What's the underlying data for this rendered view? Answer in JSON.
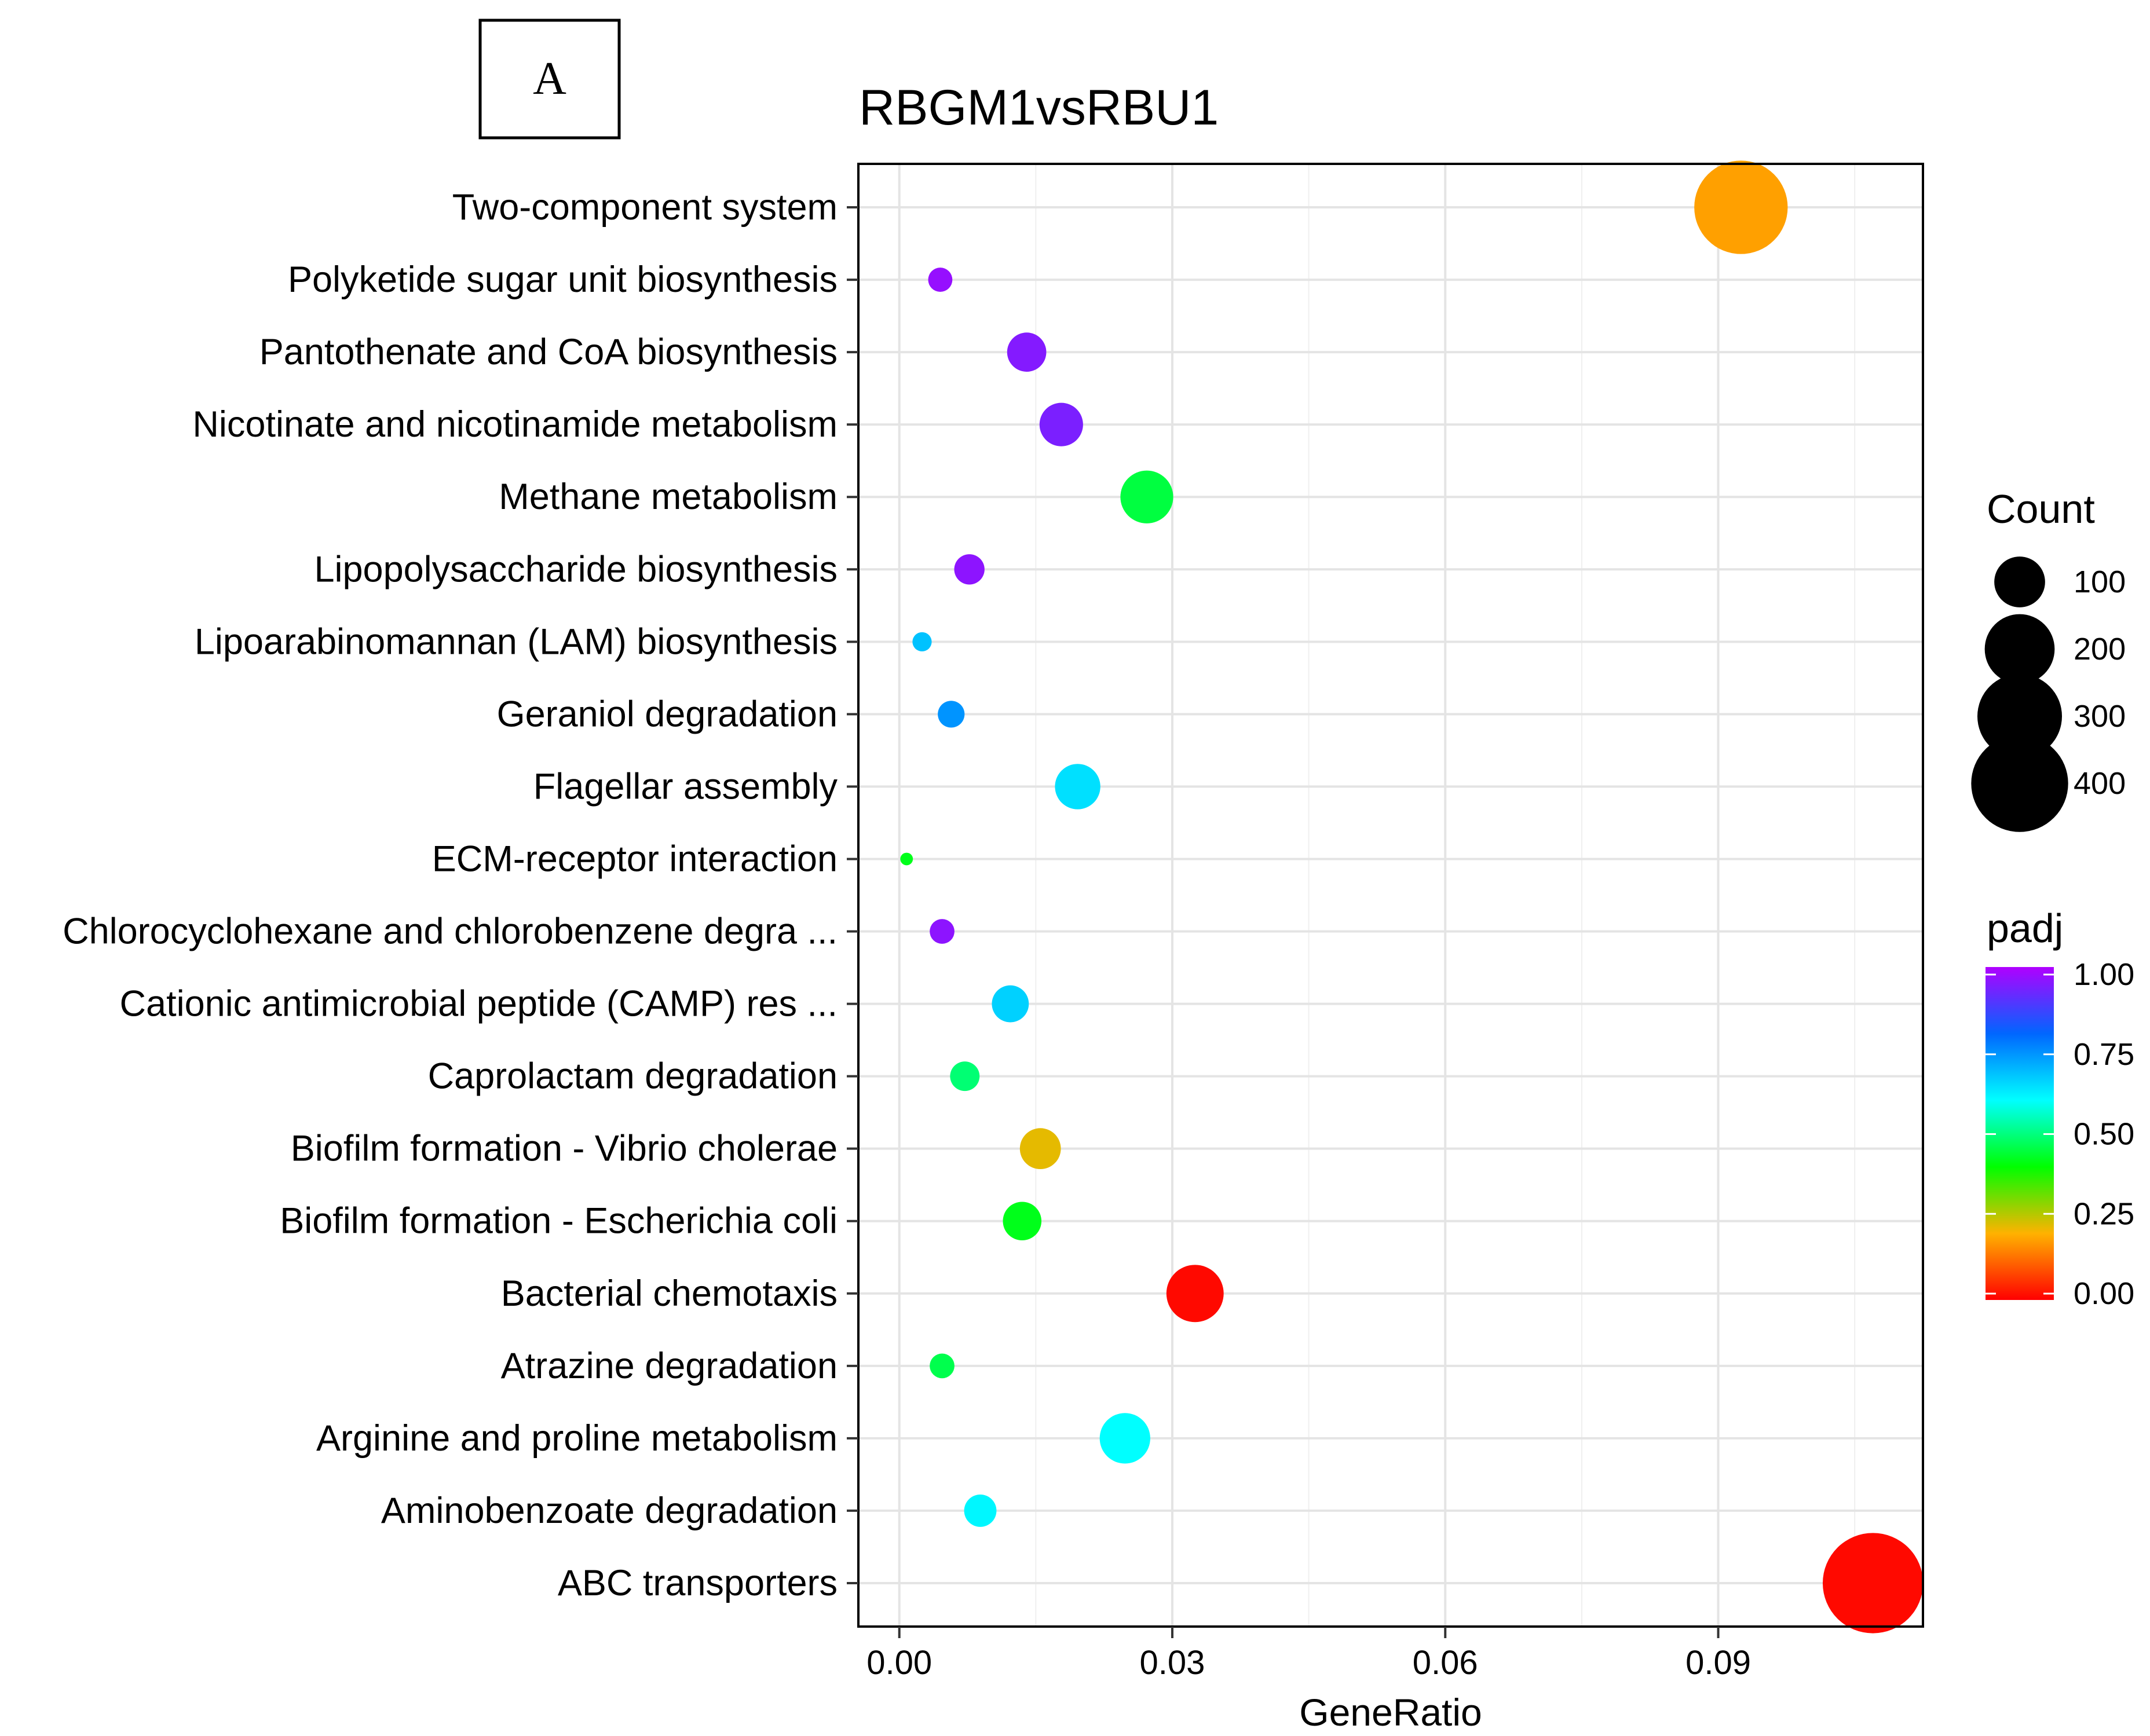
{
  "panel_label": "A",
  "chart_data": {
    "type": "scatter",
    "title": "RBGM1vsRBU1",
    "xlabel": "GeneRatio",
    "ylabel": "",
    "xlim": [
      -0.0045,
      0.1125
    ],
    "xticks": [
      0.0,
      0.03,
      0.06,
      0.09
    ],
    "xtick_labels": [
      "0.00",
      "0.03",
      "0.06",
      "0.09"
    ],
    "grid": true,
    "categories": [
      "Two-component system",
      "Polyketide sugar unit biosynthesis",
      "Pantothenate and CoA biosynthesis",
      "Nicotinate and nicotinamide metabolism",
      "Methane metabolism",
      "Lipopolysaccharide biosynthesis",
      "Lipoarabinomannan (LAM) biosynthesis",
      "Geraniol degradation",
      "Flagellar assembly",
      "ECM-receptor interaction",
      "Chlorocyclohexane and chlorobenzene degra ...",
      "Cationic antimicrobial peptide (CAMP) res ...",
      "Caprolactam degradation",
      "Biofilm formation - Vibrio cholerae",
      "Biofilm formation - Escherichia coli",
      "Bacterial chemotaxis",
      "Atrazine degradation",
      "Arginine and proline metabolism",
      "Aminobenzoate degradation",
      "ABC transporters"
    ],
    "points": [
      {
        "term": "Two-component system",
        "gene_ratio": 0.0925,
        "count": 370,
        "padj": 0.18
      },
      {
        "term": "Polyketide sugar unit biosynthesis",
        "gene_ratio": 0.0045,
        "count": 18,
        "padj": 0.97
      },
      {
        "term": "Pantothenate and CoA biosynthesis",
        "gene_ratio": 0.014,
        "count": 56,
        "padj": 0.95
      },
      {
        "term": "Nicotinate and nicotinamide metabolism",
        "gene_ratio": 0.0178,
        "count": 71,
        "padj": 0.94
      },
      {
        "term": "Methane metabolism",
        "gene_ratio": 0.0272,
        "count": 109,
        "padj": 0.45
      },
      {
        "term": "Lipopolysaccharide biosynthesis",
        "gene_ratio": 0.0077,
        "count": 31,
        "padj": 0.96
      },
      {
        "term": "Lipoarabinomannan (LAM) biosynthesis",
        "gene_ratio": 0.0025,
        "count": 10,
        "padj": 0.68
      },
      {
        "term": "Geraniol degradation",
        "gene_ratio": 0.0057,
        "count": 23,
        "padj": 0.74
      },
      {
        "term": "Flagellar assembly",
        "gene_ratio": 0.0196,
        "count": 78,
        "padj": 0.64
      },
      {
        "term": "ECM-receptor interaction",
        "gene_ratio": 0.0008,
        "count": 3,
        "padj": 0.42
      },
      {
        "term": "Chlorocyclohexane and chlorobenzene degra ...",
        "gene_ratio": 0.0047,
        "count": 19,
        "padj": 0.96
      },
      {
        "term": "Cationic antimicrobial peptide (CAMP) res ...",
        "gene_ratio": 0.0122,
        "count": 49,
        "padj": 0.66
      },
      {
        "term": "Caprolactam degradation",
        "gene_ratio": 0.0072,
        "count": 29,
        "padj": 0.49
      },
      {
        "term": "Biofilm formation - Vibrio cholerae",
        "gene_ratio": 0.0155,
        "count": 62,
        "padj": 0.22
      },
      {
        "term": "Biofilm formation - Escherichia coli",
        "gene_ratio": 0.0135,
        "count": 54,
        "padj": 0.42
      },
      {
        "term": "Bacterial chemotaxis",
        "gene_ratio": 0.0325,
        "count": 130,
        "padj": 0.01
      },
      {
        "term": "Atrazine degradation",
        "gene_ratio": 0.0047,
        "count": 19,
        "padj": 0.46
      },
      {
        "term": "Arginine and proline metabolism",
        "gene_ratio": 0.0248,
        "count": 99,
        "padj": 0.6
      },
      {
        "term": "Aminobenzoate degradation",
        "gene_ratio": 0.0089,
        "count": 36,
        "padj": 0.61
      },
      {
        "term": "ABC transporters",
        "gene_ratio": 0.107,
        "count": 430,
        "padj": 0.01
      }
    ],
    "size_legend": {
      "title": "Count",
      "values": [
        100,
        200,
        300,
        400
      ],
      "labels": [
        "100",
        "200",
        "300",
        "400"
      ]
    },
    "color_legend": {
      "title": "padj",
      "range": [
        0.0,
        1.0
      ],
      "ticks": [
        1.0,
        0.75,
        0.5,
        0.25,
        0.0
      ],
      "tick_labels": [
        "1.00",
        "0.75",
        "0.50",
        "0.25",
        "0.00"
      ],
      "colors": [
        "#ff0000",
        "#ffb200",
        "#00ff00",
        "#00ffff",
        "#0066ff",
        "#b000ff"
      ]
    }
  }
}
